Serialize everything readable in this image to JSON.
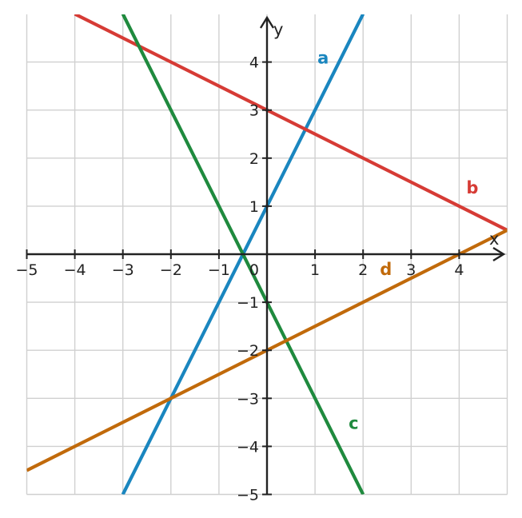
{
  "chart_data": {
    "type": "line",
    "title": "",
    "xlabel": "x",
    "ylabel": "y",
    "xlim": [
      -5,
      5
    ],
    "ylim": [
      -5,
      5
    ],
    "grid": true,
    "x_ticks": [
      "−5",
      "−4",
      "−3",
      "−2",
      "−1",
      "1",
      "2",
      "3",
      "4"
    ],
    "y_ticks": [
      "−5",
      "−4",
      "−3",
      "−2",
      "−1",
      "1",
      "2",
      "3",
      "4"
    ],
    "origin_label": "0",
    "series": [
      {
        "name": "a",
        "color": "#1a86bf",
        "x": [
          -3,
          2
        ],
        "y": [
          -5,
          5
        ],
        "label_at": [
          1.05,
          4.1
        ]
      },
      {
        "name": "b",
        "color": "#d63b35",
        "x": [
          -4,
          5
        ],
        "y": [
          5,
          0.5
        ],
        "label_at": [
          4.15,
          1.4
        ]
      },
      {
        "name": "c",
        "color": "#1f8a3e",
        "x": [
          -3,
          2
        ],
        "y": [
          5,
          -5
        ],
        "label_at": [
          1.7,
          -3.5
        ]
      },
      {
        "name": "d",
        "color": "#c16a0b",
        "x": [
          -5,
          5
        ],
        "y": [
          -4.5,
          0.5
        ],
        "label_at": [
          2.35,
          -0.3
        ]
      }
    ]
  }
}
